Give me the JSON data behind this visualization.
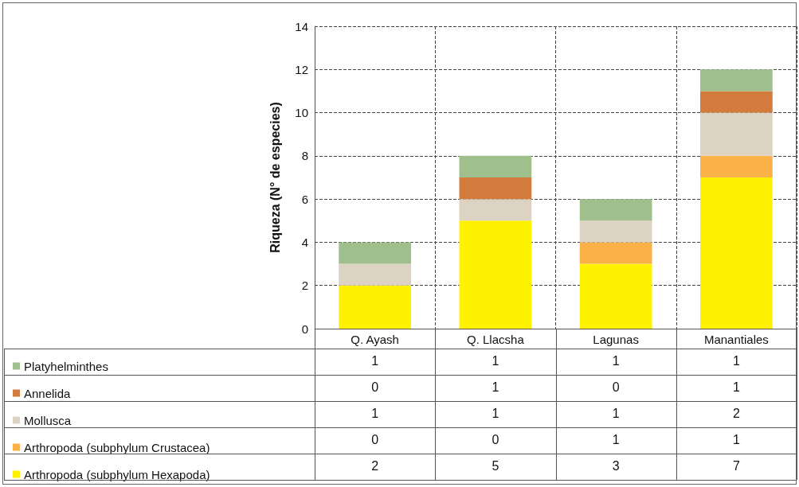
{
  "chart_data": {
    "type": "bar",
    "stacked": true,
    "ylabel": "Riqueza (N° de especies)",
    "categories": [
      "Q. Ayash",
      "Q. Llacsha",
      "Lagunas",
      "Manantiales"
    ],
    "series": [
      {
        "name": "Arthropoda (subphylum Hexapoda)",
        "color": "#fff200",
        "values": [
          2,
          5,
          3,
          7
        ]
      },
      {
        "name": "Arthropoda (subphylum Crustacea)",
        "color": "#f9b148",
        "values": [
          0,
          0,
          1,
          1
        ]
      },
      {
        "name": "Mollusca",
        "color": "#dcd3c3",
        "values": [
          1,
          1,
          1,
          2
        ]
      },
      {
        "name": "Annelida",
        "color": "#d27b3c",
        "values": [
          0,
          1,
          0,
          1
        ]
      },
      {
        "name": "Platyhelminthes",
        "color": "#9fc08c",
        "values": [
          1,
          1,
          1,
          1
        ]
      }
    ],
    "ylim": [
      0,
      14
    ],
    "yticks": [
      0,
      2,
      4,
      6,
      8,
      10,
      12,
      14
    ],
    "grid": true,
    "legend": "bottom left",
    "data_labels": true
  }
}
